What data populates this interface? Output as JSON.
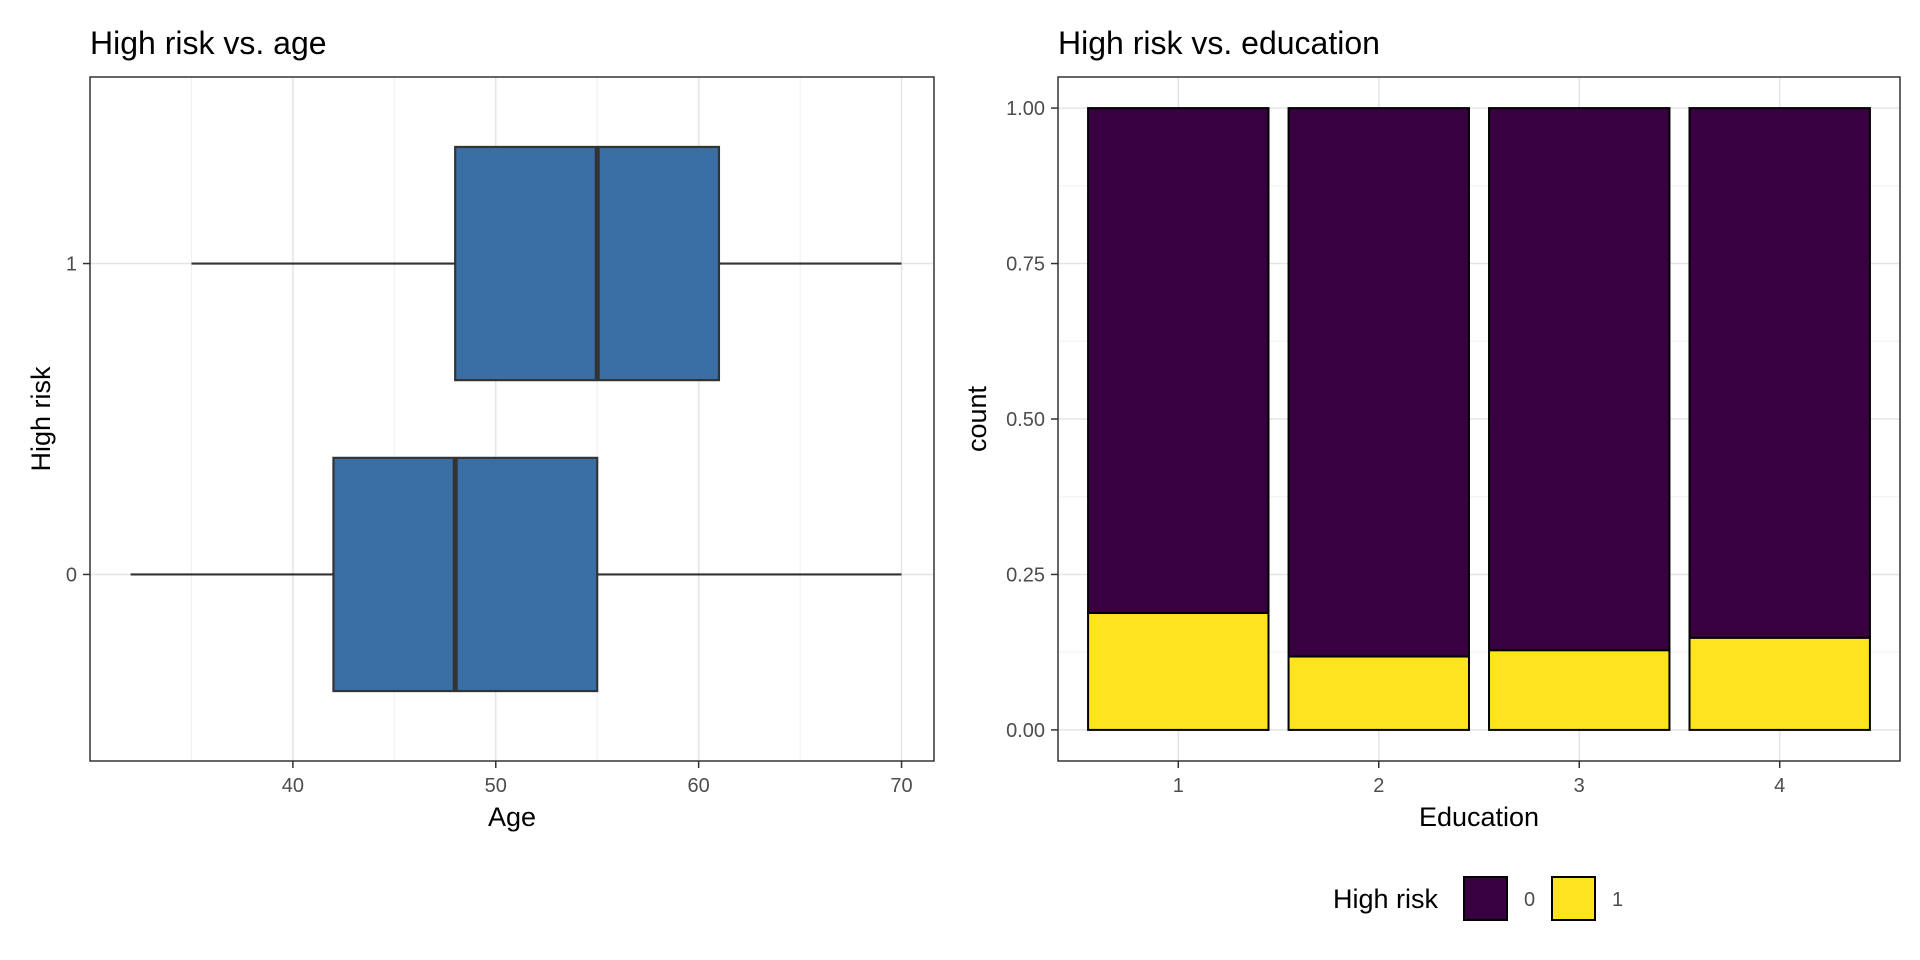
{
  "chart_data": [
    {
      "type": "boxplot",
      "title": "High risk vs. age",
      "xlabel": "Age",
      "ylabel": "High risk",
      "orientation": "horizontal",
      "xlim": [
        30,
        71.6
      ],
      "xticks": [
        40,
        50,
        60,
        70
      ],
      "categories": [
        "0",
        "1"
      ],
      "fill_color": "#3a6fa5",
      "boxes": [
        {
          "category": "0",
          "whisker_low": 32,
          "q1": 42,
          "median": 48,
          "q3": 55,
          "whisker_high": 70
        },
        {
          "category": "1",
          "whisker_low": 35,
          "q1": 48,
          "median": 55,
          "q3": 61,
          "whisker_high": 70
        }
      ]
    },
    {
      "type": "bar",
      "stacked": true,
      "title": "High risk vs. education",
      "xlabel": "Education",
      "ylabel": "count",
      "ylim": [
        -0.05,
        1.05
      ],
      "yticks": [
        "0.00",
        "0.25",
        "0.50",
        "0.75",
        "1.00"
      ],
      "categories": [
        "1",
        "2",
        "3",
        "4"
      ],
      "series": [
        {
          "name": "0",
          "color": "#380040",
          "values": [
            0.812,
            0.882,
            0.872,
            0.852
          ]
        },
        {
          "name": "1",
          "color": "#fde41e",
          "values": [
            0.188,
            0.118,
            0.128,
            0.148
          ]
        }
      ],
      "legend": {
        "title": "High risk",
        "position": "bottom",
        "labels": [
          "0",
          "1"
        ]
      }
    }
  ]
}
